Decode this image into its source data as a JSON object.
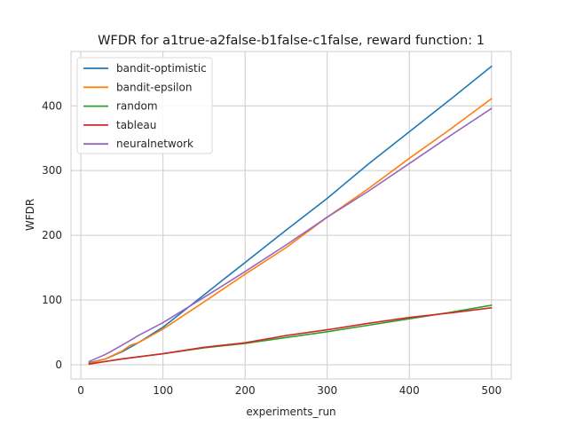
{
  "chart_data": {
    "type": "line",
    "title": "WFDR for a1true-a2false-b1false-c1false, reward function: 1",
    "xlabel": "experiments_run",
    "ylabel": "WFDR",
    "xlim": [
      -12,
      524
    ],
    "ylim": [
      -22,
      484
    ],
    "xticks": [
      0,
      100,
      200,
      300,
      400,
      500
    ],
    "yticks": [
      0,
      100,
      200,
      300,
      400
    ],
    "grid": true,
    "legend_position": "top-left",
    "series": [
      {
        "name": "bandit-optimistic",
        "color": "#1f77b4",
        "x": [
          10,
          30,
          50,
          70,
          100,
          150,
          200,
          250,
          300,
          350,
          400,
          450,
          500
        ],
        "y": [
          3,
          9,
          20,
          34,
          58,
          108,
          158,
          208,
          257,
          310,
          360,
          410,
          461
        ]
      },
      {
        "name": "bandit-epsilon",
        "color": "#ff7f0e",
        "x": [
          10,
          30,
          50,
          60,
          70,
          100,
          150,
          200,
          250,
          300,
          350,
          400,
          450,
          500
        ],
        "y": [
          2,
          9,
          21,
          30,
          34,
          55,
          97,
          140,
          181,
          228,
          272,
          319,
          364,
          411
        ]
      },
      {
        "name": "random",
        "color": "#2ca02c",
        "x": [
          10,
          50,
          100,
          150,
          200,
          250,
          300,
          350,
          400,
          450,
          500
        ],
        "y": [
          1,
          9,
          17,
          26,
          33,
          42,
          51,
          61,
          71,
          81,
          92
        ]
      },
      {
        "name": "tableau",
        "color": "#d62728",
        "x": [
          10,
          50,
          100,
          150,
          200,
          250,
          300,
          350,
          400,
          450,
          500
        ],
        "y": [
          1,
          9,
          17,
          27,
          34,
          45,
          54,
          64,
          73,
          80,
          88
        ]
      },
      {
        "name": "neuralnetwork",
        "color": "#9467bd",
        "x": [
          10,
          30,
          50,
          70,
          100,
          150,
          200,
          250,
          300,
          350,
          400,
          450,
          500
        ],
        "y": [
          5,
          16,
          30,
          45,
          65,
          104,
          144,
          185,
          228,
          268,
          311,
          354,
          396
        ]
      }
    ]
  }
}
